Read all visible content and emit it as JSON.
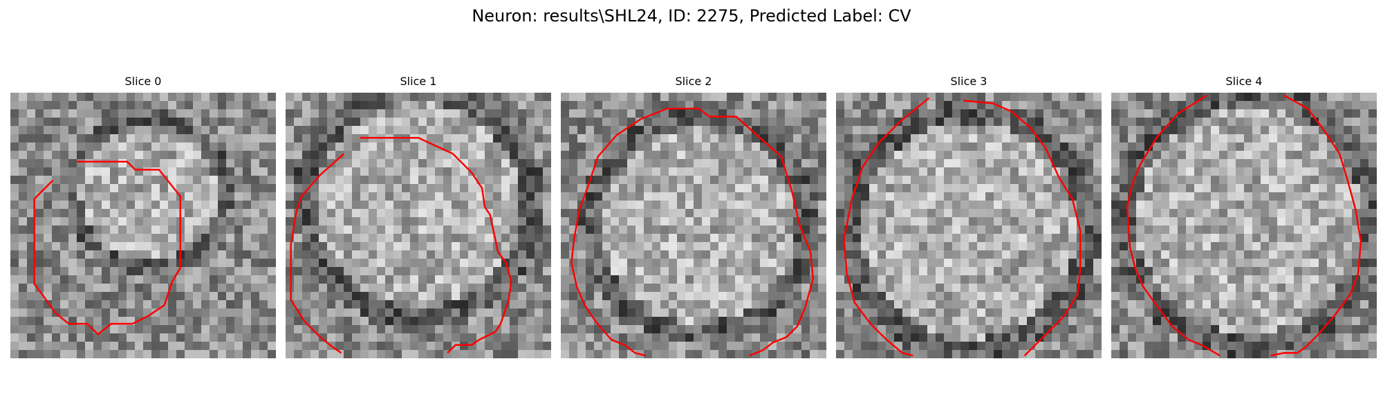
{
  "figure": {
    "title": "Neuron: results\\SHL24, ID: 2275, Predicted Label: CV",
    "contour_color": "#ff0000",
    "colormap": "grayscale"
  },
  "panels": [
    {
      "title": "Slice 0",
      "contour": [
        [
          0.25,
          0.26
        ],
        [
          0.44,
          0.26
        ],
        [
          0.47,
          0.29
        ],
        [
          0.56,
          0.29
        ],
        [
          0.64,
          0.39
        ],
        [
          0.64,
          0.66
        ],
        [
          0.61,
          0.71
        ],
        [
          0.58,
          0.8
        ],
        [
          0.52,
          0.84
        ],
        [
          0.46,
          0.87
        ],
        [
          0.38,
          0.87
        ],
        [
          0.33,
          0.91
        ],
        [
          0.29,
          0.87
        ],
        [
          0.22,
          0.87
        ],
        [
          0.17,
          0.83
        ],
        [
          0.12,
          0.76
        ],
        [
          0.09,
          0.72
        ],
        [
          0.09,
          0.4
        ],
        [
          0.16,
          0.33
        ]
      ]
    },
    {
      "title": "Slice 1",
      "contour": [
        [
          0.28,
          0.17
        ],
        [
          0.5,
          0.17
        ],
        [
          0.63,
          0.23
        ],
        [
          0.7,
          0.3
        ],
        [
          0.74,
          0.36
        ],
        [
          0.75,
          0.43
        ],
        [
          0.77,
          0.46
        ],
        [
          0.8,
          0.6
        ],
        [
          0.83,
          0.64
        ],
        [
          0.85,
          0.71
        ],
        [
          0.84,
          0.78
        ],
        [
          0.81,
          0.87
        ],
        [
          0.79,
          0.9
        ],
        [
          0.73,
          0.93
        ],
        [
          0.7,
          0.95
        ],
        [
          0.64,
          0.95
        ],
        [
          0.61,
          0.98
        ]
      ],
      "contour2": [
        [
          0.22,
          0.23
        ],
        [
          0.13,
          0.31
        ],
        [
          0.06,
          0.39
        ],
        [
          0.04,
          0.45
        ],
        [
          0.02,
          0.57
        ],
        [
          0.02,
          0.78
        ],
        [
          0.07,
          0.86
        ],
        [
          0.13,
          0.92
        ],
        [
          0.18,
          0.96
        ],
        [
          0.21,
          0.98
        ]
      ]
    },
    {
      "title": "Slice 2",
      "contour": [
        [
          0.4,
          0.06
        ],
        [
          0.52,
          0.06
        ],
        [
          0.56,
          0.09
        ],
        [
          0.66,
          0.09
        ],
        [
          0.75,
          0.17
        ],
        [
          0.83,
          0.24
        ],
        [
          0.87,
          0.37
        ],
        [
          0.9,
          0.5
        ],
        [
          0.94,
          0.6
        ],
        [
          0.95,
          0.7
        ],
        [
          0.92,
          0.81
        ],
        [
          0.89,
          0.88
        ],
        [
          0.85,
          0.92
        ],
        [
          0.8,
          0.94
        ],
        [
          0.76,
          0.97
        ],
        [
          0.71,
          0.99
        ]
      ],
      "contour2": [
        [
          0.4,
          0.06
        ],
        [
          0.3,
          0.1
        ],
        [
          0.21,
          0.16
        ],
        [
          0.14,
          0.24
        ],
        [
          0.1,
          0.36
        ],
        [
          0.07,
          0.44
        ],
        [
          0.05,
          0.55
        ],
        [
          0.04,
          0.64
        ],
        [
          0.06,
          0.73
        ],
        [
          0.09,
          0.8
        ],
        [
          0.13,
          0.86
        ],
        [
          0.19,
          0.93
        ],
        [
          0.24,
          0.95
        ],
        [
          0.28,
          0.98
        ],
        [
          0.32,
          0.99
        ]
      ]
    },
    {
      "title": "Slice 3",
      "contour": [
        [
          0.48,
          0.03
        ],
        [
          0.59,
          0.04
        ],
        [
          0.66,
          0.07
        ],
        [
          0.73,
          0.13
        ],
        [
          0.79,
          0.21
        ],
        [
          0.84,
          0.32
        ],
        [
          0.89,
          0.4
        ],
        [
          0.92,
          0.52
        ],
        [
          0.92,
          0.66
        ],
        [
          0.91,
          0.76
        ],
        [
          0.86,
          0.84
        ],
        [
          0.8,
          0.9
        ],
        [
          0.73,
          0.97
        ],
        [
          0.71,
          0.99
        ]
      ],
      "contour2": [
        [
          0.35,
          0.02
        ],
        [
          0.24,
          0.11
        ],
        [
          0.16,
          0.19
        ],
        [
          0.1,
          0.28
        ],
        [
          0.06,
          0.4
        ],
        [
          0.03,
          0.55
        ],
        [
          0.04,
          0.68
        ],
        [
          0.07,
          0.79
        ],
        [
          0.13,
          0.87
        ],
        [
          0.19,
          0.93
        ],
        [
          0.25,
          0.98
        ],
        [
          0.29,
          0.99
        ]
      ]
    },
    {
      "title": "Slice 4",
      "contour": [
        [
          0.65,
          0.01
        ],
        [
          0.74,
          0.06
        ],
        [
          0.8,
          0.14
        ],
        [
          0.86,
          0.23
        ],
        [
          0.89,
          0.33
        ],
        [
          0.92,
          0.44
        ],
        [
          0.94,
          0.56
        ],
        [
          0.93,
          0.68
        ],
        [
          0.9,
          0.76
        ],
        [
          0.84,
          0.84
        ],
        [
          0.78,
          0.91
        ],
        [
          0.73,
          0.96
        ],
        [
          0.7,
          0.98
        ],
        [
          0.65,
          0.98
        ],
        [
          0.6,
          0.99
        ]
      ],
      "contour2": [
        [
          0.36,
          0.01
        ],
        [
          0.25,
          0.08
        ],
        [
          0.17,
          0.17
        ],
        [
          0.11,
          0.27
        ],
        [
          0.08,
          0.34
        ],
        [
          0.06,
          0.43
        ],
        [
          0.07,
          0.58
        ],
        [
          0.09,
          0.66
        ],
        [
          0.12,
          0.73
        ],
        [
          0.17,
          0.8
        ],
        [
          0.23,
          0.88
        ],
        [
          0.29,
          0.93
        ],
        [
          0.34,
          0.95
        ],
        [
          0.41,
          0.99
        ]
      ]
    }
  ]
}
